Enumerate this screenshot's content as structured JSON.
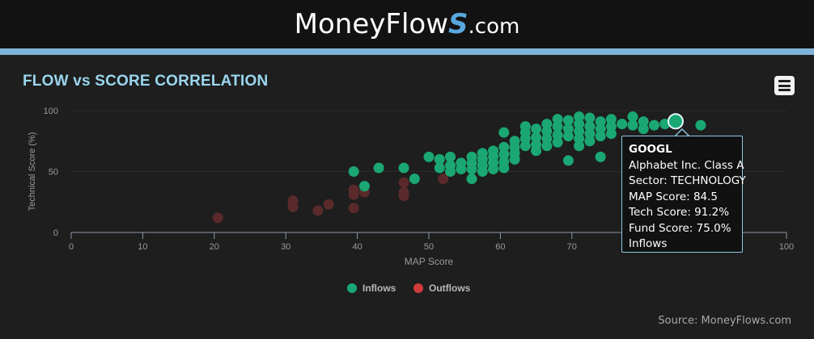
{
  "header": {
    "brand_prefix": "MoneyFlow",
    "brand_s": "S",
    "brand_suffix": ".com"
  },
  "chart_title": "FLOW vs SCORE CORRELATION",
  "menu_icon": "hamburger-menu-icon",
  "source": "Source: MoneyFlows.com",
  "colors": {
    "inflows": "#1aa774",
    "outflows": "#5a2a2a",
    "outflows_legend": "#cf3b3b",
    "title": "#9ad6ee",
    "tooltip_border": "#8fc9e6"
  },
  "tooltip": {
    "ticker": "GOOGL",
    "name": "Alphabet Inc. Class A",
    "sector": "Sector: TECHNOLOGY",
    "map_score": "MAP Score: 84.5",
    "tech_score": "Tech Score: 91.2%",
    "fund_score": "Fund Score: 75.0%",
    "flow": "Inflows"
  },
  "chart_data": {
    "type": "scatter",
    "title": "FLOW vs SCORE CORRELATION",
    "xlabel": "MAP Score",
    "ylabel": "Technical Score (%)",
    "xlim": [
      0,
      100
    ],
    "ylim": [
      0,
      100
    ],
    "x_ticks": [
      "0",
      "10",
      "20",
      "30",
      "40",
      "50",
      "60",
      "70",
      "80",
      "90",
      "100"
    ],
    "y_ticks": [
      "0",
      "50",
      "100"
    ],
    "legend": {
      "placement": "bottom-center"
    },
    "highlight": {
      "series": "Inflows",
      "x": 84.5,
      "y": 91.2
    },
    "series": [
      {
        "name": "Inflows",
        "points": [
          [
            39.5,
            50
          ],
          [
            41,
            38
          ],
          [
            43,
            53
          ],
          [
            46.5,
            53
          ],
          [
            48,
            44
          ],
          [
            50,
            62
          ],
          [
            51.5,
            60
          ],
          [
            51.5,
            53
          ],
          [
            53,
            62
          ],
          [
            53,
            55
          ],
          [
            53,
            50
          ],
          [
            54.5,
            57
          ],
          [
            54.5,
            52
          ],
          [
            56,
            62
          ],
          [
            56,
            57
          ],
          [
            56,
            52
          ],
          [
            56,
            44
          ],
          [
            57.5,
            65
          ],
          [
            57.5,
            60
          ],
          [
            57.5,
            55
          ],
          [
            57.5,
            50
          ],
          [
            59,
            67
          ],
          [
            59,
            62
          ],
          [
            59,
            57
          ],
          [
            59,
            52
          ],
          [
            60.5,
            70
          ],
          [
            60.5,
            64
          ],
          [
            60.5,
            58
          ],
          [
            60.5,
            53
          ],
          [
            60.5,
            82
          ],
          [
            62,
            75
          ],
          [
            62,
            70
          ],
          [
            62,
            65
          ],
          [
            62,
            60
          ],
          [
            63.5,
            87
          ],
          [
            63.5,
            82
          ],
          [
            63.5,
            77
          ],
          [
            63.5,
            71
          ],
          [
            65,
            85
          ],
          [
            65,
            78
          ],
          [
            65,
            72
          ],
          [
            65,
            67
          ],
          [
            66.5,
            89
          ],
          [
            66.5,
            83
          ],
          [
            66.5,
            77
          ],
          [
            66.5,
            71
          ],
          [
            68,
            93
          ],
          [
            68,
            87
          ],
          [
            68,
            80
          ],
          [
            68,
            74
          ],
          [
            69.5,
            92
          ],
          [
            69.5,
            85
          ],
          [
            69.5,
            79
          ],
          [
            69.5,
            59
          ],
          [
            71,
            95
          ],
          [
            71,
            89
          ],
          [
            71,
            83
          ],
          [
            71,
            77
          ],
          [
            71,
            71
          ],
          [
            72.5,
            94
          ],
          [
            72.5,
            87
          ],
          [
            72.5,
            81
          ],
          [
            72.5,
            75
          ],
          [
            74,
            91
          ],
          [
            74,
            85
          ],
          [
            74,
            79
          ],
          [
            74,
            62
          ],
          [
            75.5,
            93
          ],
          [
            75.5,
            87
          ],
          [
            75.5,
            81
          ],
          [
            77,
            89
          ],
          [
            78.5,
            95
          ],
          [
            78.5,
            88
          ],
          [
            80,
            91
          ],
          [
            80,
            85
          ],
          [
            81.5,
            88
          ],
          [
            83,
            89
          ],
          [
            84.5,
            91.2
          ],
          [
            88,
            88
          ]
        ]
      },
      {
        "name": "Outflows",
        "points": [
          [
            20.5,
            12
          ],
          [
            31,
            26
          ],
          [
            31,
            21
          ],
          [
            34.5,
            18
          ],
          [
            36,
            23
          ],
          [
            39.5,
            35
          ],
          [
            39.5,
            31
          ],
          [
            39.5,
            20
          ],
          [
            41,
            33
          ],
          [
            46.5,
            41
          ],
          [
            46.5,
            33
          ],
          [
            46.5,
            30
          ],
          [
            52,
            44
          ]
        ]
      }
    ]
  }
}
